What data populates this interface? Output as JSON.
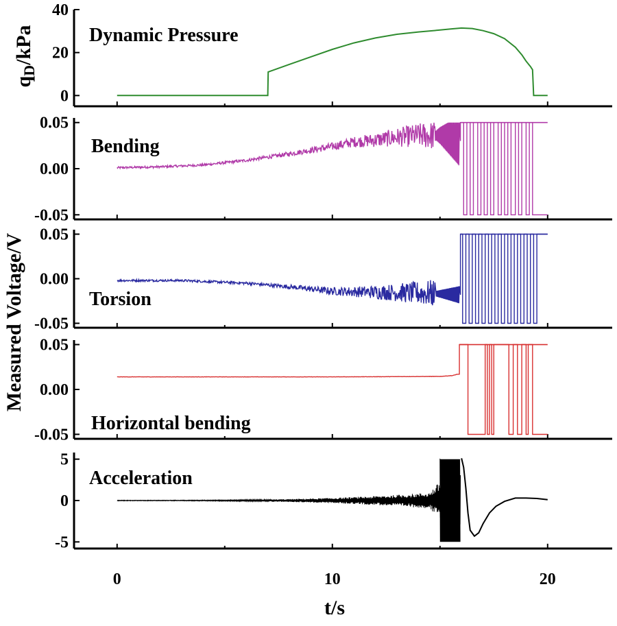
{
  "chart_data": {
    "type": "line",
    "layout": "stacked-panels",
    "shared_x": {
      "label": "t/s",
      "ticks": [
        0,
        10,
        20
      ],
      "range": [
        -2,
        23
      ]
    },
    "shared_ylabel": "Measured Voltage/V",
    "panels": [
      {
        "key": "pressure",
        "title": "Dynamic Pressure",
        "ylabel": "q",
        "ylabel_sub": "D",
        "ylabel_suffix": "/kPa",
        "color": "#2e8b2e",
        "ylim": [
          -5,
          40
        ],
        "yticks": [
          "0",
          "20",
          "40"
        ],
        "ytick_values": [
          0,
          20,
          40
        ],
        "series": {
          "x": [
            0,
            7,
            7.02,
            8,
            9,
            10,
            11,
            12,
            13,
            14,
            15,
            15.5,
            16,
            16.5,
            17,
            17.5,
            18,
            18.5,
            18.8,
            19,
            19.2,
            19.3,
            19.35,
            20
          ],
          "y": [
            0,
            0,
            11,
            14.5,
            18,
            21.5,
            24.5,
            26.8,
            28.5,
            29.6,
            30.5,
            31,
            31.4,
            31.2,
            30.2,
            28.8,
            26.5,
            22.5,
            19,
            16,
            13.5,
            12,
            0,
            0
          ]
        }
      },
      {
        "key": "bending",
        "title": "Bending",
        "color": "#b03aa8",
        "ylim": [
          -0.055,
          0.055
        ],
        "yticks": [
          "0.05",
          "0.00",
          "-0.05"
        ],
        "ytick_values": [
          0.05,
          0,
          -0.05
        ],
        "saturation": 0.05,
        "trend": {
          "x": [
            0,
            2,
            4,
            6,
            8,
            10,
            11,
            12,
            13,
            14,
            15,
            15.9
          ],
          "y": [
            0.001,
            0.002,
            0.004,
            0.009,
            0.016,
            0.024,
            0.029,
            0.031,
            0.034,
            0.036,
            0.036,
            0.03
          ]
        },
        "switch_times": [
          15.95,
          16.1,
          16.25,
          16.4,
          16.55,
          16.75,
          16.9,
          17.05,
          17.2,
          17.35,
          17.5,
          17.7,
          17.85,
          18.0,
          18.15,
          18.3,
          18.5,
          18.65,
          18.8,
          19.0,
          19.15,
          19.3
        ]
      },
      {
        "key": "torsion",
        "title": "Torsion",
        "color": "#2a2aa0",
        "ylim": [
          -0.055,
          0.055
        ],
        "yticks": [
          "0.05",
          "0.00",
          "-0.05"
        ],
        "ytick_values": [
          0.05,
          0,
          -0.05
        ],
        "saturation": 0.05,
        "trend": {
          "x": [
            0,
            3,
            6,
            8,
            10,
            12,
            14,
            15,
            15.9
          ],
          "y": [
            -0.002,
            -0.002,
            -0.005,
            -0.009,
            -0.014,
            -0.015,
            -0.016,
            -0.017,
            -0.018
          ]
        },
        "switch_times": [
          15.95,
          16.05,
          16.2,
          16.35,
          16.5,
          16.65,
          16.8,
          16.95,
          17.1,
          17.25,
          17.4,
          17.55,
          17.7,
          17.85,
          18.0,
          18.15,
          18.3,
          18.45,
          18.6,
          18.75,
          18.9,
          19.05,
          19.2,
          19.35,
          19.5
        ]
      },
      {
        "key": "horizontal",
        "title": "Horizontal bending",
        "color": "#d83030",
        "ylim": [
          -0.055,
          0.055
        ],
        "yticks": [
          "0.05",
          "0.00",
          "-0.05"
        ],
        "ytick_values": [
          0.05,
          0,
          -0.05
        ],
        "saturation": 0.05,
        "trend": {
          "x": [
            0,
            5,
            10,
            15,
            15.6,
            15.8
          ],
          "y": [
            0.014,
            0.014,
            0.014,
            0.0145,
            0.0155,
            0.017
          ]
        },
        "switch_times": [
          15.9,
          16.3,
          17.1,
          17.2,
          17.3,
          17.4,
          17.5,
          18.2,
          18.4,
          18.6,
          18.8,
          19.0,
          19.1,
          19.3
        ]
      },
      {
        "key": "acceleration",
        "title": "Acceleration",
        "color": "#000000",
        "ylim": [
          -5.8,
          5.8
        ],
        "yticks": [
          "5",
          "0",
          "-5"
        ],
        "ytick_values": [
          5,
          0,
          -5
        ],
        "saturation": 5,
        "recovery": {
          "x": [
            16.0,
            16.1,
            16.2,
            16.3,
            16.4,
            16.6,
            16.8,
            17.0,
            17.3,
            17.6,
            18.0,
            18.5,
            19.0,
            19.5,
            20.0
          ],
          "y": [
            5.1,
            4.0,
            1.5,
            -1.5,
            -3.6,
            -4.3,
            -3.9,
            -2.8,
            -1.5,
            -0.7,
            -0.1,
            0.3,
            0.3,
            0.25,
            0.1
          ]
        }
      }
    ]
  }
}
